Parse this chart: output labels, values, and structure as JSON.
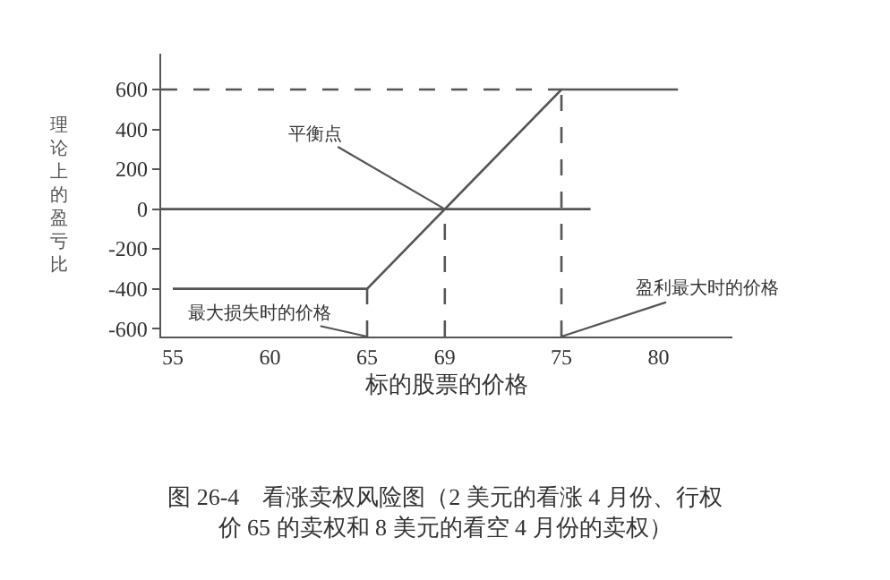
{
  "chart_data": {
    "type": "line",
    "title": "图 26-4　看涨卖权风险图（2 美元的看涨 4 月份、行权价 65 的卖权和 8 美元的看空 4 月份的卖权）",
    "xlabel": "标的股票的价格",
    "ylabel": "理论上的盈亏比",
    "series": [
      {
        "color": "#555555",
        "x": [
          55,
          65,
          75,
          81
        ],
        "values": [
          -400,
          -400,
          600,
          600
        ],
        "line_style": "solid"
      },
      {
        "color": "#555555",
        "x": [
          54.4,
          76.5
        ],
        "values": [
          0,
          0
        ],
        "line_style": "solid"
      },
      {
        "color": "#555555",
        "x": [
          54.4,
          75
        ],
        "values": [
          600,
          600
        ],
        "line_style": "dashed"
      },
      {
        "color": "#555555",
        "x": [
          65,
          65
        ],
        "values": [
          -640,
          -400
        ],
        "line_style": "dashed"
      },
      {
        "color": "#555555",
        "x": [
          69,
          69
        ],
        "values": [
          -640,
          0
        ],
        "line_style": "dashed"
      },
      {
        "color": "#555555",
        "x": [
          75,
          75
        ],
        "values": [
          -640,
          600
        ],
        "line_style": "dashed"
      }
    ],
    "annotations": [
      {
        "text": "平衡点",
        "x": 69,
        "y": 0
      },
      {
        "text": "最大损失时的价格",
        "x": 65,
        "y": -640
      },
      {
        "text": "盈利最大时的价格",
        "x": 75,
        "y": -640
      }
    ],
    "xlim": [
      54.4,
      83.8
    ],
    "xticks": [
      55,
      60,
      65,
      69,
      75,
      80
    ],
    "ylim": [
      -640,
      780
    ],
    "yticks": [
      600,
      400,
      200,
      0,
      -200,
      -400,
      -600
    ],
    "marker": "none"
  }
}
